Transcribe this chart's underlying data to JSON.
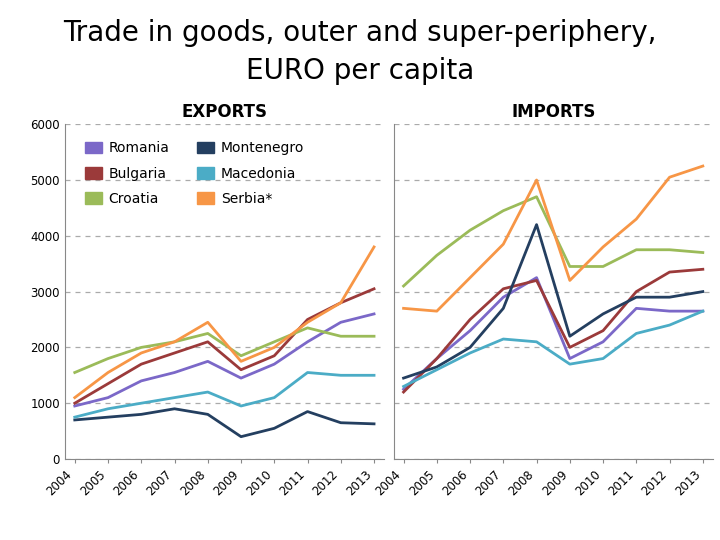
{
  "title_line1": "Trade in goods, outer and super-periphery,",
  "title_line2": "EURO per capita",
  "subtitle_left": "EXPORTS",
  "subtitle_right": "IMPORTS",
  "years": [
    2004,
    2005,
    2006,
    2007,
    2008,
    2009,
    2010,
    2011,
    2012,
    2013
  ],
  "exports": {
    "Romania": [
      950,
      1100,
      1400,
      1550,
      1750,
      1450,
      1700,
      2100,
      2450,
      2600
    ],
    "Bulgaria": [
      1000,
      1350,
      1700,
      1900,
      2100,
      1600,
      1850,
      2500,
      2800,
      3050
    ],
    "Croatia": [
      1550,
      1800,
      2000,
      2100,
      2250,
      1850,
      2100,
      2350,
      2200,
      2200
    ],
    "Montenegro": [
      700,
      750,
      800,
      900,
      800,
      400,
      550,
      850,
      650,
      630
    ],
    "Macedonia": [
      750,
      900,
      1000,
      1100,
      1200,
      950,
      1100,
      1550,
      1500,
      1500
    ],
    "Serbia*": [
      1100,
      1550,
      1900,
      2100,
      2450,
      1750,
      2000,
      2450,
      2800,
      3800
    ]
  },
  "imports": {
    "Romania": [
      1250,
      1800,
      2300,
      2900,
      3250,
      1800,
      2100,
      2700,
      2650,
      2650
    ],
    "Bulgaria": [
      1200,
      1800,
      2500,
      3050,
      3200,
      2000,
      2300,
      3000,
      3350,
      3400
    ],
    "Croatia": [
      3100,
      3650,
      4100,
      4450,
      4700,
      3450,
      3450,
      3750,
      3750,
      3700
    ],
    "Montenegro": [
      1450,
      1650,
      2000,
      2700,
      4200,
      2200,
      2600,
      2900,
      2900,
      3000
    ],
    "Macedonia": [
      1300,
      1600,
      1900,
      2150,
      2100,
      1700,
      1800,
      2250,
      2400,
      2650
    ],
    "Serbia*": [
      2700,
      2650,
      3250,
      3850,
      5000,
      3200,
      3800,
      4300,
      5050,
      5250
    ]
  },
  "colors": {
    "Romania": "#7B68C8",
    "Bulgaria": "#9B3A3A",
    "Croatia": "#9BBB59",
    "Montenegro": "#243F60",
    "Macedonia": "#4BACC6",
    "Serbia*": "#F79646"
  },
  "ylim": [
    0,
    6000
  ],
  "yticks": [
    0,
    1000,
    2000,
    3000,
    4000,
    5000,
    6000
  ],
  "background_color": "#FFFFFF",
  "grid_color": "#AAAAAA",
  "title_fontsize": 20,
  "subtitle_fontsize": 12,
  "legend_fontsize": 10,
  "tick_fontsize": 8.5
}
